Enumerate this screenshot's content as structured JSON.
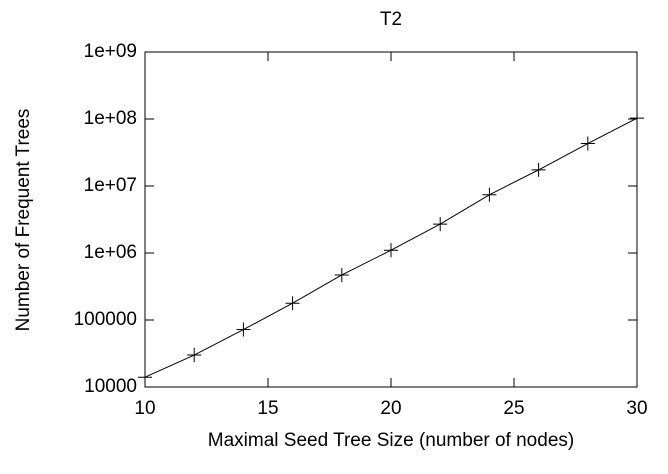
{
  "chart_data": {
    "type": "line",
    "title": "T2",
    "x_label": "Maximal Seed Tree Size (number of nodes)",
    "y_label": "Number of Frequent Trees",
    "x": [
      10,
      12,
      14,
      16,
      18,
      20,
      22,
      24,
      26,
      28,
      30
    ],
    "values": [
      14000,
      30000,
      72000,
      178000,
      470000,
      1100000,
      2700000,
      7400000,
      17400000,
      43000000,
      103000000
    ],
    "color": "#000000",
    "marker": "+",
    "y_scale": "log",
    "xlim": [
      10,
      30
    ],
    "xticks": [
      10,
      15,
      20,
      25,
      30
    ],
    "ylim": [
      10000,
      1000000000
    ],
    "yticks": [
      10000,
      100000,
      {
        "value": 1000000,
        "label": "1e+06"
      },
      {
        "value": 10000000,
        "label": "1e+07"
      },
      {
        "value": 100000000,
        "label": "1e+08"
      },
      {
        "value": 1000000000,
        "label": "1e+09"
      }
    ]
  }
}
